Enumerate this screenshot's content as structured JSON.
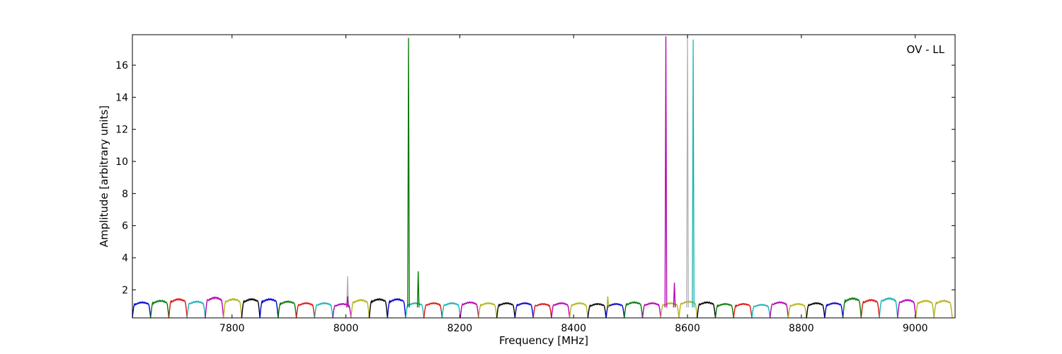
{
  "chart_data": {
    "type": "line",
    "annotation": "OV - LL",
    "xlabel": "Frequency [MHz]",
    "ylabel": "Amplitude [arbitrary units]",
    "xlim": [
      7625,
      9070
    ],
    "ylim": [
      0.25,
      17.9
    ],
    "x_ticks": [
      7800,
      8000,
      8200,
      8400,
      8600,
      8800,
      9000
    ],
    "y_ticks": [
      2,
      4,
      6,
      8,
      10,
      12,
      14,
      16
    ],
    "grid": false,
    "band_start_mhz": 7625,
    "band_width_mhz": 32,
    "band_colors": [
      "#0000cc",
      "#007700",
      "#dd1111",
      "#17b3b3",
      "#b300b3",
      "#b3b31a",
      "#000000",
      "#0000cc",
      "#007700",
      "#dd1111",
      "#17b3b3",
      "#b300b3",
      "#b3b31a",
      "#000000",
      "#0000cc",
      "#17b3b3",
      "#dd1111",
      "#17b3b3",
      "#b300b3",
      "#b3b31a",
      "#000000",
      "#0000cc",
      "#dd1111",
      "#b300b3",
      "#b3b31a",
      "#000000",
      "#0000cc",
      "#007700",
      "#b300b3",
      "#b3b31a",
      "#b3b31a",
      "#000000",
      "#007700",
      "#dd1111",
      "#17b3b3",
      "#b300b3",
      "#b3b31a",
      "#000000",
      "#0000cc",
      "#007700",
      "#dd1111",
      "#17b3b3",
      "#b300b3",
      "#b3b31a",
      "#b3b31a"
    ],
    "band_peaks": [
      1.25,
      1.35,
      1.45,
      1.3,
      1.55,
      1.45,
      1.45,
      1.45,
      1.3,
      1.2,
      1.2,
      1.15,
      1.4,
      1.45,
      1.45,
      1.2,
      1.2,
      1.2,
      1.25,
      1.2,
      1.2,
      1.2,
      1.15,
      1.2,
      1.2,
      1.15,
      1.15,
      1.25,
      1.2,
      1.2,
      1.3,
      1.25,
      1.15,
      1.15,
      1.1,
      1.25,
      1.15,
      1.2,
      1.2,
      1.5,
      1.4,
      1.5,
      1.4,
      1.35,
      1.35
    ],
    "spikes": [
      {
        "x": 8003,
        "y": 2.85,
        "color": "#b0b0b0"
      },
      {
        "x": 8003,
        "y": 1.6,
        "color": "#b300b3"
      },
      {
        "x": 8110,
        "y": 17.7,
        "color": "#007700"
      },
      {
        "x": 8127,
        "y": 3.15,
        "color": "#007700"
      },
      {
        "x": 8460,
        "y": 1.6,
        "color": "#b3b31a"
      },
      {
        "x": 8562,
        "y": 17.8,
        "color": "#b300b3"
      },
      {
        "x": 8577,
        "y": 2.45,
        "color": "#b300b3"
      },
      {
        "x": 8600,
        "y": 17.8,
        "color": "#b0b0b0"
      },
      {
        "x": 8610,
        "y": 17.6,
        "color": "#17b3b3"
      }
    ]
  }
}
